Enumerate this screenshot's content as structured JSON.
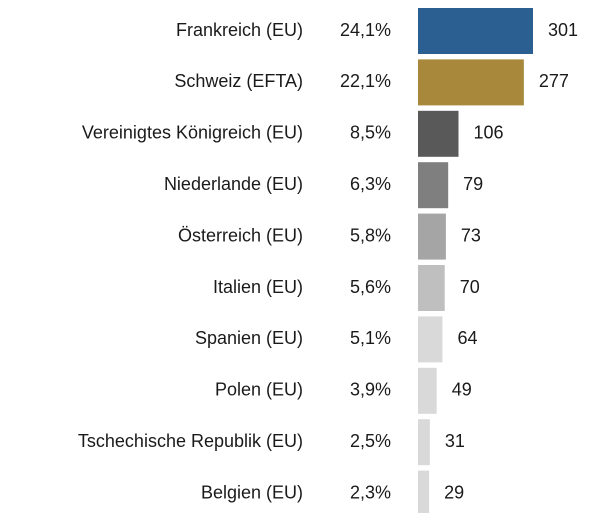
{
  "chart_data": {
    "type": "bar",
    "orientation": "horizontal",
    "categories": [
      "Frankreich (EU)",
      "Schweiz (EFTA)",
      "Vereinigtes Königreich (EU)",
      "Niederlande (EU)",
      "Österreich (EU)",
      "Italien (EU)",
      "Spanien (EU)",
      "Polen (EU)",
      "Tschechische Republik (EU)",
      "Belgien (EU)"
    ],
    "shares": [
      24.1,
      22.1,
      8.5,
      6.3,
      5.8,
      5.6,
      5.1,
      3.9,
      2.5,
      2.3
    ],
    "share_labels": [
      "24,1%",
      "22,1%",
      "8,5%",
      "6,3%",
      "5,8%",
      "5,6%",
      "5,1%",
      "3,9%",
      "2,5%",
      "2,3%"
    ],
    "values": [
      301,
      277,
      106,
      79,
      73,
      70,
      64,
      49,
      31,
      29
    ],
    "colors": [
      "#2b5e91",
      "#a8883b",
      "#595959",
      "#7f7f7f",
      "#a5a5a5",
      "#bfbfbf",
      "#d9d9d9",
      "#d9d9d9",
      "#d9d9d9",
      "#d9d9d9"
    ]
  }
}
